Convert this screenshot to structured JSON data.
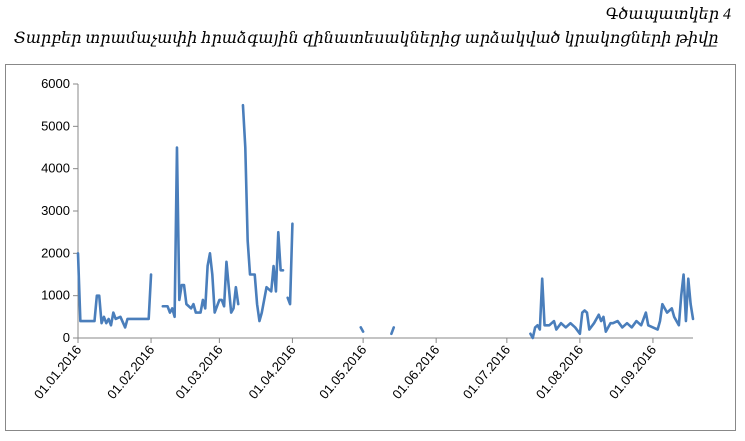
{
  "chart_data": {
    "type": "line",
    "figure_label": "Գծապատկեր 4",
    "title": "Տարբեր տրամաչափի հրաձգային զինատեսակներից արձակված կրակոցների թիվը",
    "x": [
      "01.01.2016",
      "02.01.2016",
      "04.01.2016",
      "06.01.2016",
      "08.01.2016",
      "09.01.2016",
      "10.01.2016",
      "11.01.2016",
      "12.01.2016",
      "13.01.2016",
      "14.01.2016",
      "15.01.2016",
      "16.01.2016",
      "17.01.2016",
      "19.01.2016",
      "21.01.2016",
      "22.01.2016",
      "24.01.2016",
      "27.01.2016",
      "31.01.2016",
      "01.02.2016",
      "03.02.2016",
      "06.02.2016",
      "08.02.2016",
      "09.02.2016",
      "10.02.2016",
      "11.02.2016",
      "12.02.2016",
      "13.02.2016",
      "14.02.2016",
      "15.02.2016",
      "16.02.2016",
      "17.02.2016",
      "18.02.2016",
      "19.02.2016",
      "20.02.2016",
      "22.02.2016",
      "23.02.2016",
      "24.02.2016",
      "25.02.2016",
      "26.02.2016",
      "27.02.2016",
      "28.02.2016",
      "01.03.2016",
      "02.03.2016",
      "03.03.2016",
      "04.03.2016",
      "05.03.2016",
      "06.03.2016",
      "07.03.2016",
      "08.03.2016",
      "09.03.2016",
      "10.03.2016",
      "11.03.2016",
      "12.03.2016",
      "13.03.2016",
      "14.03.2016",
      "15.03.2016",
      "16.03.2016",
      "17.03.2016",
      "18.03.2016",
      "19.03.2016",
      "21.03.2016",
      "23.03.2016",
      "24.03.2016",
      "25.03.2016",
      "26.03.2016",
      "27.03.2016",
      "28.03.2016",
      "29.03.2016",
      "30.03.2016",
      "31.03.2016",
      "01.04.2016",
      "02.04.2016",
      "30.04.2016",
      "01.05.2016",
      "02.05.2016",
      "13.05.2016",
      "14.05.2016",
      "15.05.2016",
      "11.07.2016",
      "12.07.2016",
      "13.07.2016",
      "14.07.2016",
      "15.07.2016",
      "16.07.2016",
      "17.07.2016",
      "19.07.2016",
      "21.07.2016",
      "22.07.2016",
      "24.07.2016",
      "26.07.2016",
      "28.07.2016",
      "30.07.2016",
      "01.08.2016",
      "02.08.2016",
      "03.08.2016",
      "04.08.2016",
      "05.08.2016",
      "07.08.2016",
      "09.08.2016",
      "10.08.2016",
      "11.08.2016",
      "12.08.2016",
      "14.08.2016",
      "15.08.2016",
      "17.08.2016",
      "19.08.2016",
      "21.08.2016",
      "23.08.2016",
      "25.08.2016",
      "27.08.2016",
      "28.08.2016",
      "29.08.2016",
      "30.08.2016",
      "01.09.2016",
      "03.09.2016",
      "04.09.2016",
      "05.09.2016",
      "06.09.2016",
      "07.09.2016",
      "09.09.2016",
      "10.09.2016",
      "12.09.2016",
      "13.09.2016",
      "14.09.2016",
      "15.09.2016",
      "16.09.2016",
      "17.09.2016",
      "18.09.2016"
    ],
    "values": [
      2000,
      400,
      400,
      400,
      400,
      1000,
      1000,
      350,
      500,
      350,
      450,
      300,
      600,
      450,
      500,
      250,
      450,
      450,
      450,
      450,
      1500,
      null,
      750,
      750,
      600,
      700,
      500,
      4500,
      900,
      1250,
      1250,
      800,
      750,
      700,
      800,
      600,
      600,
      900,
      700,
      1700,
      2000,
      1500,
      600,
      900,
      900,
      750,
      1800,
      1200,
      600,
      700,
      1200,
      800,
      null,
      5500,
      4500,
      2300,
      1500,
      1500,
      1500,
      800,
      400,
      600,
      1200,
      1100,
      1700,
      1100,
      2500,
      1600,
      1600,
      null,
      950,
      800,
      2700,
      null,
      250,
      150,
      null,
      100,
      250,
      null,
      100,
      0,
      250,
      300,
      200,
      1400,
      300,
      300,
      400,
      200,
      350,
      250,
      350,
      250,
      100,
      600,
      650,
      600,
      200,
      350,
      550,
      400,
      500,
      150,
      350,
      350,
      400,
      250,
      350,
      250,
      400,
      300,
      450,
      600,
      300,
      250,
      200,
      400,
      800,
      700,
      600,
      700,
      500,
      300,
      1000,
      1500,
      400,
      1400,
      800,
      450
    ],
    "color": "#4a7ebb",
    "xlim": [
      "01.01.2016",
      "18.09.2016"
    ],
    "xticks": [
      "01.01.2016",
      "01.02.2016",
      "01.03.2016",
      "01.04.2016",
      "01.05.2016",
      "01.06.2016",
      "01.07.2016",
      "01.08.2016",
      "01.09.2016"
    ],
    "ylim": [
      0,
      6000
    ],
    "yticks": [
      0,
      1000,
      2000,
      3000,
      4000,
      5000,
      6000
    ],
    "grid": false
  }
}
